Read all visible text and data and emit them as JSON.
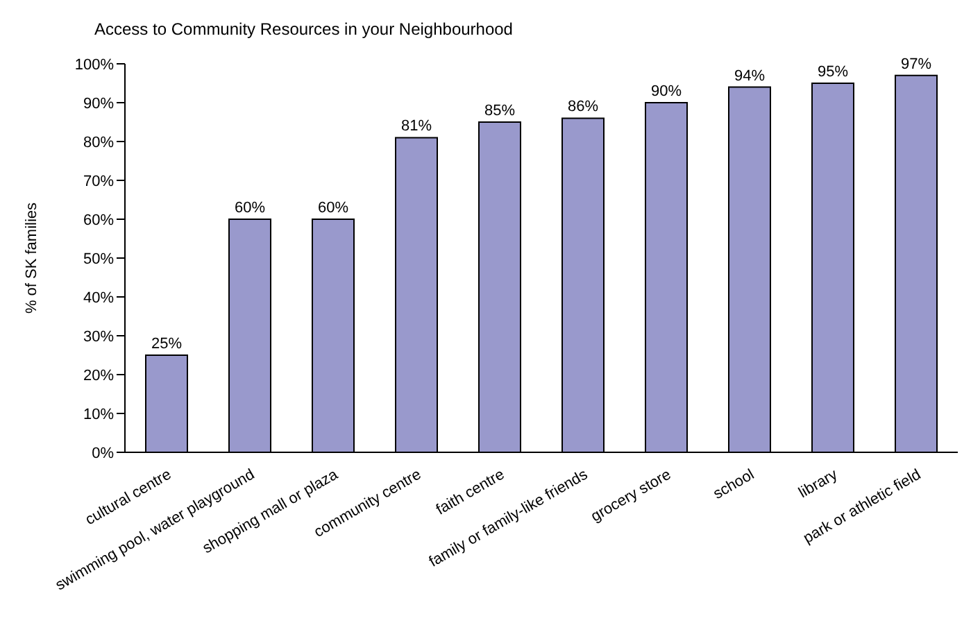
{
  "chart_data": {
    "type": "bar",
    "title": "Access to Community Resources in your Neighbourhood",
    "ylabel": "% of SK families",
    "categories": [
      "cultural centre",
      "swimming pool, water playground",
      "shopping mall or plaza",
      "community centre",
      "faith centre",
      "family or family-like friends",
      "grocery store",
      "school",
      "library",
      "park or athletic field"
    ],
    "values": [
      25,
      60,
      60,
      81,
      85,
      86,
      90,
      94,
      95,
      97
    ],
    "value_labels": [
      "25%",
      "60%",
      "60%",
      "81%",
      "85%",
      "86%",
      "90%",
      "94%",
      "95%",
      "97%"
    ],
    "color": "#9999cc",
    "ylim": [
      0,
      100
    ],
    "yticks": [
      {
        "value": 0,
        "label": "0%"
      },
      {
        "value": 10,
        "label": "10%"
      },
      {
        "value": 20,
        "label": "20%"
      },
      {
        "value": 30,
        "label": "30%"
      },
      {
        "value": 40,
        "label": "40%"
      },
      {
        "value": 50,
        "label": "50%"
      },
      {
        "value": 60,
        "label": "60%"
      },
      {
        "value": 70,
        "label": "70%"
      },
      {
        "value": 80,
        "label": "80%"
      },
      {
        "value": 90,
        "label": "90%"
      },
      {
        "value": 100,
        "label": "100%"
      }
    ],
    "grid": false,
    "legend": false
  }
}
